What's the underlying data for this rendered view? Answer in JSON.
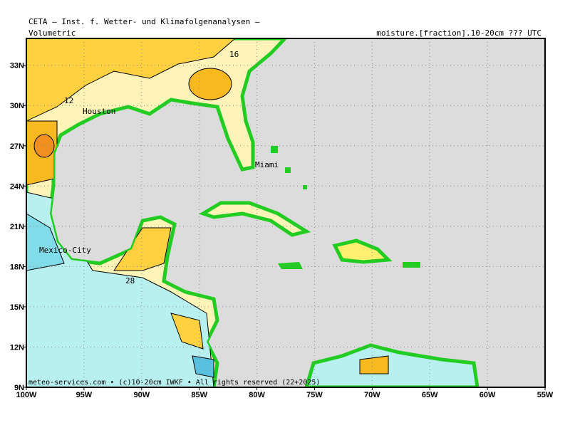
{
  "header": {
    "title": "CETA — Inst. f. Wetter- und Klimafolgenanalysen —",
    "left": "Volumetric",
    "right": "moisture.[fraction].10-20cm ??? UTC"
  },
  "map": {
    "lonlim": [
      -100,
      -55
    ],
    "latlim": [
      9,
      35
    ],
    "lat_ticks": [
      {
        "value": 33,
        "label": "33N"
      },
      {
        "value": 30,
        "label": "30N"
      },
      {
        "value": 27,
        "label": "27N"
      },
      {
        "value": 24,
        "label": "24N"
      },
      {
        "value": 21,
        "label": "21N"
      },
      {
        "value": 18,
        "label": "18N"
      },
      {
        "value": 15,
        "label": "15N"
      },
      {
        "value": 12,
        "label": "12N"
      },
      {
        "value": 9,
        "label": "9N"
      }
    ],
    "lon_ticks": [
      {
        "value": -100,
        "label": "100W"
      },
      {
        "value": -95,
        "label": "95W"
      },
      {
        "value": -90,
        "label": "90W"
      },
      {
        "value": -85,
        "label": "85W"
      },
      {
        "value": -80,
        "label": "80W"
      },
      {
        "value": -75,
        "label": "75W"
      },
      {
        "value": -70,
        "label": "70W"
      },
      {
        "value": -65,
        "label": "65W"
      },
      {
        "value": -60,
        "label": "60W"
      },
      {
        "value": -55,
        "label": "55W"
      }
    ],
    "cities": [
      "Houston",
      "Miami",
      "Mexico-City"
    ],
    "contour_labels": [
      "16",
      "12",
      "28"
    ]
  },
  "footer": "meteo-services.com • (c)10-20cm IWKF • All rights reserved (22+2025)"
}
